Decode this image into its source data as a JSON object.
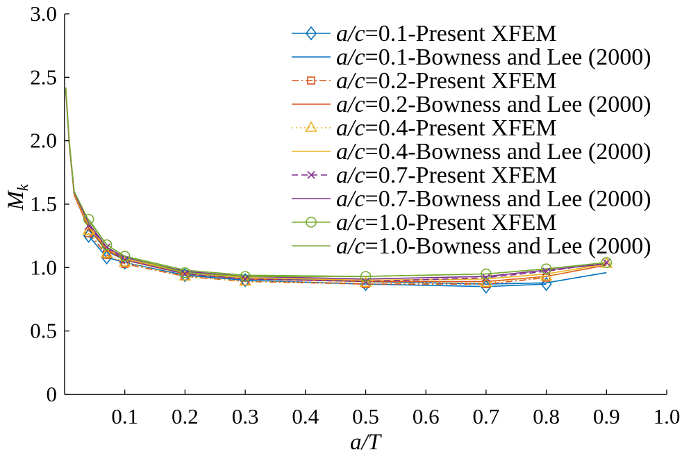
{
  "chart_data": {
    "type": "line",
    "xlabel": "a/T",
    "ylabel": {
      "text": "M",
      "subscript": "k"
    },
    "xlim": [
      0,
      1.0
    ],
    "ylim": [
      0,
      3.0
    ],
    "xticks": [
      "0.1",
      "0.2",
      "0.3",
      "0.4",
      "0.5",
      "0.6",
      "0.7",
      "0.8",
      "0.9",
      "1.0"
    ],
    "yticks": [
      "0",
      "0.5",
      "1.0",
      "1.5",
      "2.0",
      "2.5",
      "3.0"
    ],
    "grid": false,
    "legend_position": "top-right",
    "series": [
      {
        "name": "a/c=0.1-Present XFEM",
        "color": "#0072BD",
        "line_style": "solid",
        "marker": "diamond",
        "x": [
          0.04,
          0.07,
          0.1,
          0.2,
          0.3,
          0.5,
          0.7,
          0.8
        ],
        "y": [
          1.25,
          1.08,
          1.04,
          0.94,
          0.9,
          0.87,
          0.85,
          0.87
        ]
      },
      {
        "name": "a/c=0.1-Bowness and Lee (2000)",
        "color": "#0072BD",
        "line_style": "solid",
        "marker": "none",
        "x": [
          0.002,
          0.008,
          0.016,
          0.04,
          0.07,
          0.1,
          0.2,
          0.3,
          0.5,
          0.7,
          0.8,
          0.9
        ],
        "y": [
          2.4,
          1.96,
          1.57,
          1.31,
          1.13,
          1.06,
          0.96,
          0.92,
          0.89,
          0.87,
          0.88,
          0.96
        ]
      },
      {
        "name": "a/c=0.2-Present XFEM",
        "color": "#D95319",
        "line_style": "dashdot",
        "marker": "square",
        "x": [
          0.04,
          0.07,
          0.1,
          0.2,
          0.3,
          0.5,
          0.7,
          0.8
        ],
        "y": [
          1.27,
          1.1,
          1.03,
          0.93,
          0.89,
          0.87,
          0.87,
          0.92
        ]
      },
      {
        "name": "a/c=0.2-Bowness and Lee (2000)",
        "color": "#D95319",
        "line_style": "solid",
        "marker": "none",
        "x": [
          0.002,
          0.008,
          0.016,
          0.04,
          0.07,
          0.1,
          0.2,
          0.3,
          0.5,
          0.7,
          0.8,
          0.9
        ],
        "y": [
          2.4,
          1.96,
          1.57,
          1.31,
          1.14,
          1.06,
          0.95,
          0.91,
          0.89,
          0.89,
          0.93,
          1.02
        ]
      },
      {
        "name": "a/c=0.4-Present XFEM",
        "color": "#EDB120",
        "line_style": "dotted",
        "marker": "triangle",
        "x": [
          0.04,
          0.07,
          0.1,
          0.2,
          0.3,
          0.5,
          0.7,
          0.8,
          0.9
        ],
        "y": [
          1.29,
          1.11,
          1.04,
          0.93,
          0.89,
          0.88,
          0.88,
          0.93,
          1.03
        ]
      },
      {
        "name": "a/c=0.4-Bowness and Lee (2000)",
        "color": "#EDB120",
        "line_style": "solid",
        "marker": "none",
        "x": [
          0.002,
          0.008,
          0.016,
          0.04,
          0.07,
          0.1,
          0.2,
          0.3,
          0.5,
          0.7,
          0.8,
          0.9
        ],
        "y": [
          2.41,
          1.97,
          1.58,
          1.33,
          1.15,
          1.07,
          0.96,
          0.92,
          0.9,
          0.91,
          0.95,
          1.03
        ]
      },
      {
        "name": "a/c=0.7-Present XFEM",
        "color": "#7E2F8E",
        "line_style": "dashed",
        "marker": "x",
        "x": [
          0.04,
          0.07,
          0.1,
          0.2,
          0.3,
          0.5,
          0.7,
          0.8,
          0.9
        ],
        "y": [
          1.33,
          1.16,
          1.06,
          0.95,
          0.91,
          0.89,
          0.92,
          0.97,
          1.04
        ]
      },
      {
        "name": "a/c=0.7-Bowness and Lee (2000)",
        "color": "#7E2F8E",
        "line_style": "solid",
        "marker": "none",
        "x": [
          0.002,
          0.008,
          0.016,
          0.04,
          0.07,
          0.1,
          0.2,
          0.3,
          0.5,
          0.7,
          0.8,
          0.9
        ],
        "y": [
          2.41,
          1.98,
          1.59,
          1.35,
          1.16,
          1.08,
          0.97,
          0.93,
          0.91,
          0.93,
          0.98,
          1.03
        ]
      },
      {
        "name": "a/c=1.0-Present XFEM",
        "color": "#77AC30",
        "line_style": "solid",
        "marker": "circle",
        "x": [
          0.04,
          0.07,
          0.1,
          0.2,
          0.3,
          0.5,
          0.7,
          0.8,
          0.9
        ],
        "y": [
          1.38,
          1.18,
          1.09,
          0.96,
          0.93,
          0.93,
          0.95,
          0.99,
          1.04
        ]
      },
      {
        "name": "a/c=1.0-Bowness and Lee (2000)",
        "color": "#77AC30",
        "line_style": "solid",
        "marker": "none",
        "x": [
          0.002,
          0.008,
          0.016,
          0.04,
          0.07,
          0.1,
          0.2,
          0.3,
          0.5,
          0.7,
          0.8,
          0.9
        ],
        "y": [
          2.42,
          1.99,
          1.6,
          1.37,
          1.18,
          1.09,
          0.98,
          0.94,
          0.93,
          0.95,
          0.99,
          1.04
        ]
      }
    ]
  }
}
